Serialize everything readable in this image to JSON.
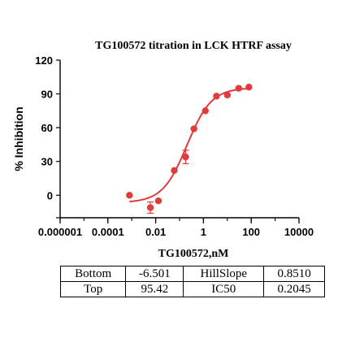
{
  "chart_data": {
    "type": "scatter",
    "title": "TG100572 titration in LCK HTRF assay",
    "xlabel": "TG100572,nM",
    "ylabel": "% Inhibition",
    "xscale": "log",
    "xlim": [
      1e-06,
      10000
    ],
    "ylim": [
      -20,
      120
    ],
    "x_ticks": [
      1e-06,
      0.0001,
      0.01,
      1,
      100,
      10000
    ],
    "x_tick_labels": [
      "0.000001",
      "0.0001",
      "0.01",
      "1",
      "100",
      "10000"
    ],
    "y_ticks": [
      -20,
      0,
      30,
      60,
      90,
      120
    ],
    "y_tick_labels": [
      "",
      "0",
      "30",
      "60",
      "90",
      "120"
    ],
    "grid": false,
    "series": [
      {
        "color": "#e23b3b",
        "points": [
          {
            "x": 0.0008,
            "y": 0
          },
          {
            "x": 0.006,
            "y": -11,
            "err": 5
          },
          {
            "x": 0.013,
            "y": -5
          },
          {
            "x": 0.06,
            "y": 22
          },
          {
            "x": 0.18,
            "y": 34,
            "err": 6
          },
          {
            "x": 0.4,
            "y": 59
          },
          {
            "x": 1.2,
            "y": 75
          },
          {
            "x": 3.5,
            "y": 88
          },
          {
            "x": 10,
            "y": 89
          },
          {
            "x": 30,
            "y": 95
          },
          {
            "x": 80,
            "y": 96
          }
        ]
      }
    ],
    "fit": {
      "bottom": -6.501,
      "top": 95.42,
      "hillslope": 0.851,
      "ic50": 0.2045,
      "color": "#e23b3b"
    }
  },
  "params_table": {
    "rows": [
      [
        "Bottom",
        "-6.501",
        "HillSlope",
        "0.8510"
      ],
      [
        "Top",
        "95.42",
        "IC50",
        "0.2045"
      ]
    ]
  }
}
